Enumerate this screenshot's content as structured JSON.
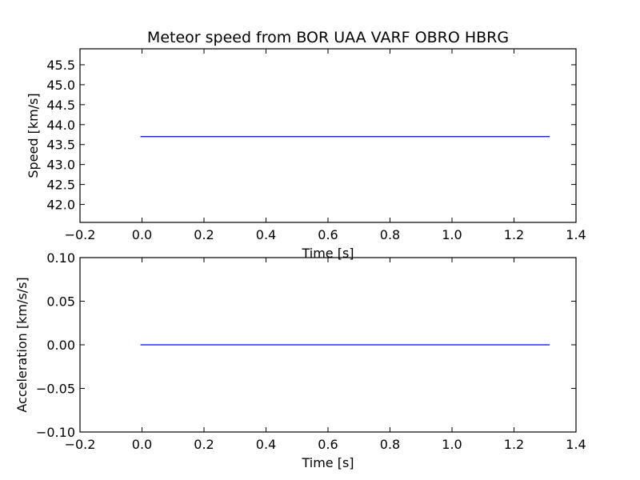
{
  "title": "Meteor speed from  BOR UAA VARF OBRO HBRG",
  "chart_data": [
    {
      "type": "line",
      "xlabel": "Time [s]",
      "ylabel": "Speed [km/s]",
      "xlim": [
        -0.2,
        1.4
      ],
      "ylim": [
        41.55,
        45.9
      ],
      "xticks": [
        -0.2,
        0.0,
        0.2,
        0.4,
        0.6,
        0.8,
        1.0,
        1.2,
        1.4
      ],
      "xtick_labels": [
        "−0.2",
        "0.0",
        "0.2",
        "0.4",
        "0.6",
        "0.8",
        "1.0",
        "1.2",
        "1.4"
      ],
      "yticks": [
        42.0,
        42.5,
        43.0,
        43.5,
        44.0,
        44.5,
        45.0,
        45.5
      ],
      "ytick_labels": [
        "42.0",
        "42.5",
        "43.0",
        "43.5",
        "44.0",
        "44.5",
        "45.0",
        "45.5"
      ],
      "color": "#0000ff",
      "series": [
        {
          "x": [
            -0.005,
            1.315
          ],
          "y": [
            43.7,
            43.7
          ]
        }
      ]
    },
    {
      "type": "line",
      "xlabel": "Time [s]",
      "ylabel": "Acceleration [km/s/s]",
      "xlim": [
        -0.2,
        1.4
      ],
      "ylim": [
        -0.1,
        0.1
      ],
      "xticks": [
        -0.2,
        0.0,
        0.2,
        0.4,
        0.6,
        0.8,
        1.0,
        1.2,
        1.4
      ],
      "xtick_labels": [
        "−0.2",
        "0.0",
        "0.2",
        "0.4",
        "0.6",
        "0.8",
        "1.0",
        "1.2",
        "1.4"
      ],
      "yticks": [
        -0.1,
        -0.05,
        0.0,
        0.05,
        0.1
      ],
      "ytick_labels": [
        "−0.10",
        "−0.05",
        "0.00",
        "0.05",
        "0.10"
      ],
      "color": "#0000ff",
      "series": [
        {
          "x": [
            -0.005,
            1.315
          ],
          "y": [
            0.0,
            0.0
          ]
        }
      ]
    }
  ]
}
